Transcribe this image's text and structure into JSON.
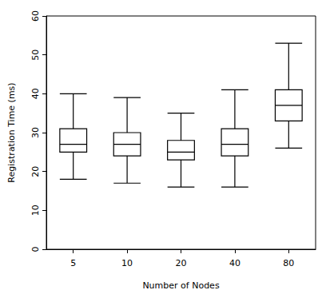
{
  "chart_data": {
    "type": "boxplot",
    "x_label": "Number of Nodes",
    "y_label": "Registration Time (ms)",
    "categories": [
      "5",
      "10",
      "20",
      "40",
      "80"
    ],
    "values": [
      [
        18,
        25,
        27,
        31,
        40
      ],
      [
        17,
        24,
        27,
        30,
        39
      ],
      [
        16,
        23,
        25,
        28,
        35
      ],
      [
        16,
        24,
        27,
        31,
        41
      ],
      [
        26,
        33,
        37,
        41,
        53
      ]
    ],
    "color": "#000000",
    "ylim": [
      0,
      60
    ],
    "yticks": [
      0,
      10,
      20,
      30,
      40,
      50,
      60
    ],
    "grid": false
  }
}
